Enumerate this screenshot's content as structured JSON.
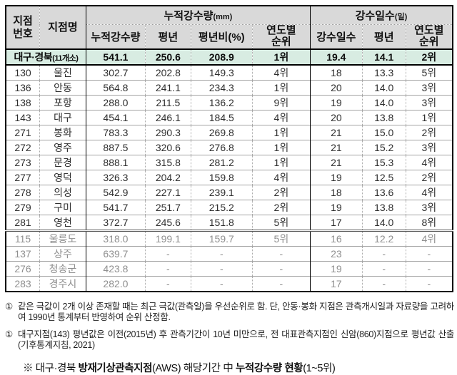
{
  "table": {
    "headers": {
      "station_no": "지점\n번호",
      "station_name": "지점명",
      "group_precip": "누적강수량",
      "group_precip_unit": "(mm)",
      "group_days": "강수일수",
      "group_days_unit": "(일)",
      "sub": [
        "누적강수량",
        "평년",
        "평년비(%)",
        "연도별\n순위",
        "강수일수",
        "평년",
        "연도별\n순위"
      ]
    },
    "summary": {
      "label": "대구·경북",
      "label_suffix": "(11개소)",
      "values": [
        "541.1",
        "250.6",
        "208.9",
        "1위",
        "19.4",
        "14.1",
        "2위"
      ]
    },
    "rows": [
      {
        "no": "130",
        "name": "울진",
        "values": [
          "302.7",
          "202.8",
          "149.3",
          "4위",
          "18",
          "13.3",
          "5위"
        ],
        "muted": false
      },
      {
        "no": "136",
        "name": "안동",
        "values": [
          "564.8",
          "241.1",
          "234.3",
          "1위",
          "20",
          "14.0",
          "3위"
        ],
        "muted": false
      },
      {
        "no": "138",
        "name": "포항",
        "values": [
          "288.0",
          "211.5",
          "136.2",
          "9위",
          "19",
          "14.0",
          "3위"
        ],
        "muted": false
      },
      {
        "no": "143",
        "name": "대구",
        "values": [
          "454.1",
          "246.1",
          "184.5",
          "4위",
          "20",
          "13.8",
          "1위"
        ],
        "muted": false
      },
      {
        "no": "271",
        "name": "봉화",
        "values": [
          "783.3",
          "290.3",
          "269.8",
          "1위",
          "21",
          "15.0",
          "2위"
        ],
        "muted": false
      },
      {
        "no": "272",
        "name": "영주",
        "values": [
          "887.5",
          "320.6",
          "276.8",
          "1위",
          "21",
          "15.2",
          "3위"
        ],
        "muted": false
      },
      {
        "no": "273",
        "name": "문경",
        "values": [
          "888.1",
          "315.8",
          "281.2",
          "1위",
          "21",
          "15.3",
          "4위"
        ],
        "muted": false
      },
      {
        "no": "277",
        "name": "영덕",
        "values": [
          "326.3",
          "204.2",
          "159.8",
          "4위",
          "19",
          "12.5",
          "2위"
        ],
        "muted": false
      },
      {
        "no": "278",
        "name": "의성",
        "values": [
          "542.9",
          "227.1",
          "239.1",
          "2위",
          "18",
          "13.6",
          "4위"
        ],
        "muted": false
      },
      {
        "no": "279",
        "name": "구미",
        "values": [
          "541.7",
          "251.7",
          "215.2",
          "2위",
          "19",
          "13.8",
          "3위"
        ],
        "muted": false
      },
      {
        "no": "281",
        "name": "영천",
        "values": [
          "372.7",
          "245.6",
          "151.8",
          "5위",
          "17",
          "14.0",
          "8위"
        ],
        "muted": false
      },
      {
        "no": "115",
        "name": "울릉도",
        "values": [
          "318.0",
          "199.1",
          "159.7",
          "5위",
          "16",
          "12.2",
          "4위"
        ],
        "muted": true
      },
      {
        "no": "137",
        "name": "상주",
        "values": [
          "639.7",
          "-",
          "-",
          "-",
          "23",
          "-",
          "-"
        ],
        "muted": true
      },
      {
        "no": "276",
        "name": "청송군",
        "values": [
          "423.8",
          "-",
          "-",
          "-",
          "19",
          "-",
          "-"
        ],
        "muted": true
      },
      {
        "no": "283",
        "name": "경주시",
        "values": [
          "282.0",
          "-",
          "-",
          "-",
          "17",
          "-",
          "-"
        ],
        "muted": true
      }
    ]
  },
  "footnotes": [
    {
      "marker": "①",
      "text": "같은 극값이 2개 이상 존재할 때는 최근 극값(관측일)을 우선순위로 함. 단, 안동·봉화 지점은 관측개시일과 자료량을 고려하여 1990년 통계부터 반영하여 순위 산정함."
    },
    {
      "marker": "①",
      "text": "대구지점(143) 평년값은 이전(2015년) 후 관측기간이 10년 미만으로, 전 대표관측지점인 신암(860)지점으로 평년값 산출(기후통계지침, 2021)"
    }
  ],
  "caption": {
    "prefix": "※ 대구·경북 ",
    "bold1": "방재기상관측지점",
    "mid": "(AWS) 해당기간 中 ",
    "bold2": "누적강수량 현황",
    "suffix": "(1~5위)"
  },
  "colors": {
    "header_bg": "#d9d9d9",
    "summary_bg": "#d8ece2",
    "muted_text": "#8f8f8f",
    "border_dark": "#000000"
  }
}
